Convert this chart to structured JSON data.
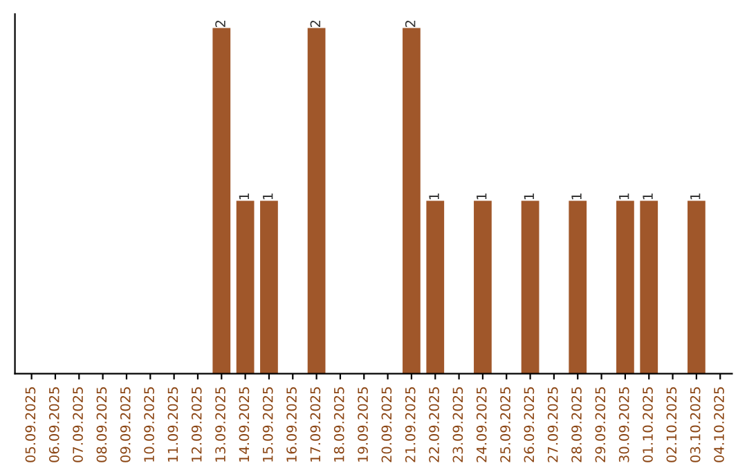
{
  "chart_data": {
    "type": "bar",
    "categories": [
      "05.09.2025",
      "06.09.2025",
      "07.09.2025",
      "08.09.2025",
      "09.09.2025",
      "10.09.2025",
      "11.09.2025",
      "12.09.2025",
      "13.09.2025",
      "14.09.2025",
      "15.09.2025",
      "16.09.2025",
      "17.09.2025",
      "18.09.2025",
      "19.09.2025",
      "20.09.2025",
      "21.09.2025",
      "22.09.2025",
      "23.09.2025",
      "24.09.2025",
      "25.09.2025",
      "26.09.2025",
      "27.09.2025",
      "28.09.2025",
      "29.09.2025",
      "30.09.2025",
      "01.10.2025",
      "02.10.2025",
      "03.10.2025",
      "04.10.2025"
    ],
    "values": [
      0,
      0,
      0,
      0,
      0,
      0,
      0,
      0,
      2,
      1,
      1,
      0,
      2,
      0,
      0,
      0,
      2,
      1,
      0,
      1,
      0,
      1,
      0,
      1,
      0,
      1,
      1,
      0,
      1,
      0
    ],
    "value_labels": [
      null,
      null,
      null,
      null,
      null,
      null,
      null,
      null,
      "2",
      "1",
      "1",
      null,
      "2",
      null,
      null,
      null,
      "2",
      "1",
      null,
      "1",
      null,
      "1",
      null,
      "1",
      null,
      "1",
      "1",
      null,
      "1",
      null
    ],
    "color": "#a0572a",
    "tick_labels": "x",
    "grid": false,
    "legend": false
  }
}
